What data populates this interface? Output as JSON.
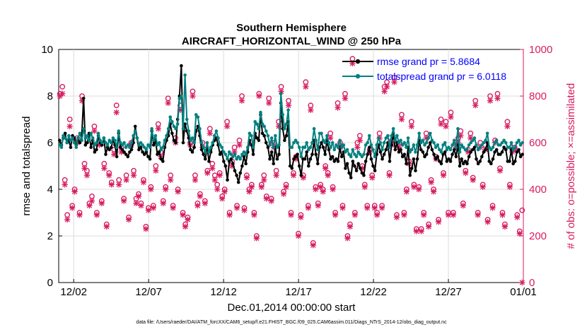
{
  "chart_data": {
    "type": "line",
    "title": "Southern Hemisphere",
    "subtitle": "AIRCRAFT_HORIZONTAL_WIND @ 250 hPa",
    "xlabel": "Dec.01,2014 00:00:00 start",
    "ylabel": "rmse and totalspread",
    "y2label": "# of obs: o=possible; ×=assimilated",
    "xlim": [
      0,
      31
    ],
    "ylim": [
      0,
      10
    ],
    "y2lim": [
      0,
      1000
    ],
    "x_ticks": [
      {
        "x": 1,
        "label": "12/02"
      },
      {
        "x": 6,
        "label": "12/07"
      },
      {
        "x": 11,
        "label": "12/12"
      },
      {
        "x": 16,
        "label": "12/17"
      },
      {
        "x": 21,
        "label": "12/22"
      },
      {
        "x": 26,
        "label": "12/27"
      },
      {
        "x": 31,
        "label": "01/01"
      }
    ],
    "y_ticks": [
      "0",
      "2",
      "4",
      "6",
      "8",
      "10"
    ],
    "y2_ticks": [
      "0",
      "200",
      "400",
      "600",
      "800",
      "1000"
    ],
    "colors": {
      "rmse": "#000000",
      "spread": "#00807f",
      "obs": "#d81b60",
      "axis2": "#d81b60",
      "legend_text": "#0000ff"
    },
    "series": [
      {
        "name": "rmse grand pr = 5.8684",
        "color": "#000000",
        "values": [
          6.1,
          5.9,
          6.2,
          6.4,
          6.0,
          6.1,
          5.8,
          6.3,
          6.2,
          5.9,
          6.1,
          6.0,
          6.3,
          7.9,
          5.9,
          6.0,
          6.4,
          5.8,
          6.1,
          5.6,
          5.7,
          6.3,
          6.0,
          5.9,
          6.2,
          5.5,
          5.8,
          5.7,
          5.8,
          6.1,
          5.9,
          5.4,
          6.4,
          5.8,
          5.7,
          5.6,
          5.5,
          5.4,
          5.6,
          5.7,
          6.0,
          6.7,
          6.2,
          5.7,
          5.8,
          5.6,
          5.5,
          5.6,
          5.4,
          5.3,
          6.5,
          5.9,
          6.1,
          5.5,
          5.6,
          5.3,
          5.2,
          5.8,
          6.1,
          6.3,
          6.8,
          6.4,
          6.1,
          6.0,
          7.0,
          8.0,
          9.3,
          6.0,
          6.8,
          6.5,
          6.2,
          5.7,
          5.6,
          5.8,
          6.5,
          6.7,
          6.3,
          5.7,
          5.5,
          5.3,
          5.8,
          5.2,
          5.6,
          5.9,
          6.1,
          6.2,
          5.9,
          5.5,
          5.6,
          5.2,
          5.0,
          4.4,
          5.2,
          5.3,
          5.1,
          4.8,
          4.6,
          4.3,
          4.7,
          5.0,
          5.4,
          5.1,
          5.6,
          6.1,
          5.9,
          5.5,
          6.4,
          6.2,
          6.1,
          7.2,
          6.4,
          6.3,
          6.0,
          5.8,
          5.3,
          5.6,
          5.1,
          5.8,
          5.3,
          5.5,
          7.7,
          6.6,
          6.1,
          6.3,
          6.9,
          5.0,
          4.9,
          5.3,
          5.4,
          5.5,
          5.0,
          4.6,
          5.3,
          5.3,
          5.6,
          5.0,
          5.3,
          5.5,
          6.1,
          5.5,
          5.1,
          5.8,
          6.0,
          5.8,
          5.5,
          6.1,
          5.7,
          5.3,
          5.4,
          5.2,
          5.3,
          5.2,
          5.8,
          5.4,
          5.6,
          4.9,
          5.1,
          4.7,
          4.5,
          5.2,
          5.0,
          4.8,
          5.1,
          4.9,
          4.7,
          4.6,
          5.2,
          5.5,
          5.8,
          5.3,
          5.0,
          4.8,
          5.5,
          5.9,
          5.6,
          5.3,
          5.5,
          5.7,
          6.0,
          5.2,
          5.9,
          6.4,
          5.7,
          6.0,
          5.6,
          5.7,
          5.4,
          5.5,
          5.1,
          5.8,
          4.6,
          4.9,
          5.3,
          4.8,
          5.3,
          6.1,
          5.7,
          5.6,
          5.4,
          5.5,
          5.8,
          6.0,
          5.7,
          5.5,
          5.3,
          5.4,
          5.2,
          5.1,
          5.5,
          5.6,
          5.2,
          5.3,
          5.2,
          5.5,
          5.7,
          5.4,
          5.9,
          5.0,
          5.3,
          5.1,
          5.2,
          5.1,
          5.4,
          5.6,
          5.7,
          5.8,
          5.3,
          5.1,
          5.2,
          5.4,
          5.6,
          5.7,
          6.0,
          5.2,
          5.1,
          5.3,
          5.6,
          5.7,
          5.5,
          5.5,
          5.6,
          5.8,
          5.7,
          5.2,
          5.2,
          5.7,
          5.1,
          5.2,
          5.6,
          5.7,
          5.4,
          5.5
        ]
      },
      {
        "name": "totalspread grand pr = 6.0118",
        "color": "#00807f",
        "values": [
          5.9,
          5.8,
          6.3,
          6.2,
          6.0,
          6.3,
          6.1,
          6.2,
          6.0,
          5.8,
          6.2,
          6.4,
          6.1,
          6.6,
          6.2,
          6.3,
          6.1,
          6.4,
          6.2,
          5.9,
          6.0,
          6.4,
          6.1,
          6.0,
          6.2,
          6.0,
          5.9,
          6.1,
          6.0,
          6.2,
          6.1,
          5.8,
          6.5,
          6.0,
          5.9,
          6.0,
          5.8,
          5.9,
          5.8,
          6.0,
          6.3,
          6.5,
          6.2,
          5.9,
          6.0,
          5.9,
          5.8,
          5.7,
          5.9,
          5.8,
          6.6,
          6.1,
          6.3,
          5.9,
          6.0,
          5.7,
          5.8,
          6.1,
          6.3,
          6.6,
          7.1,
          6.9,
          6.7,
          6.6,
          6.8,
          7.9,
          8.0,
          6.6,
          8.9,
          7.0,
          6.5,
          6.1,
          6.2,
          6.0,
          7.2,
          7.1,
          6.6,
          6.0,
          5.8,
          5.6,
          6.0,
          5.6,
          5.8,
          6.0,
          6.3,
          6.5,
          6.2,
          5.9,
          5.8,
          5.6,
          5.5,
          5.3,
          5.6,
          5.5,
          5.4,
          5.5,
          5.3,
          5.4,
          5.3,
          5.5,
          5.6,
          5.5,
          5.8,
          6.4,
          6.3,
          5.8,
          6.9,
          6.8,
          6.6,
          7.3,
          6.8,
          6.7,
          6.5,
          6.3,
          5.9,
          6.2,
          5.8,
          6.3,
          5.8,
          5.9,
          8.1,
          7.2,
          6.6,
          6.8,
          7.4,
          5.8,
          5.8,
          6.0,
          6.1,
          6.0,
          5.8,
          5.4,
          5.8,
          5.8,
          6.0,
          5.7,
          5.8,
          6.0,
          6.6,
          6.1,
          5.7,
          6.4,
          6.4,
          6.1,
          6.0,
          6.3,
          6.0,
          5.8,
          6.0,
          5.7,
          5.9,
          5.8,
          6.1,
          5.8,
          5.9,
          5.6,
          5.7,
          5.5,
          5.4,
          5.7,
          5.5,
          5.4,
          5.6,
          5.5,
          5.4,
          5.5,
          5.9,
          6.0,
          6.3,
          5.9,
          5.7,
          5.4,
          5.9,
          6.2,
          6.0,
          5.7,
          6.0,
          6.2,
          6.3,
          5.8,
          6.3,
          6.6,
          6.1,
          6.3,
          6.0,
          6.1,
          5.9,
          6.0,
          5.8,
          6.2,
          5.6,
          5.7,
          5.9,
          5.6,
          5.9,
          6.4,
          6.0,
          6.1,
          5.9,
          6.0,
          6.2,
          6.4,
          6.1,
          6.0,
          5.8,
          5.9,
          5.7,
          5.6,
          5.9,
          6.0,
          5.7,
          5.8,
          5.7,
          5.9,
          6.1,
          5.8,
          6.6,
          5.6,
          5.9,
          5.8,
          5.7,
          5.7,
          5.9,
          6.0,
          6.1,
          6.2,
          5.9,
          5.7,
          5.8,
          5.9,
          6.0,
          6.1,
          6.4,
          5.8,
          5.7,
          5.8,
          6.0,
          6.1,
          5.9,
          5.9,
          6.0,
          6.1,
          6.0,
          5.8,
          5.8,
          6.0,
          5.7,
          5.8,
          6.0,
          6.1,
          5.9,
          6.0
        ]
      },
      {
        "name": "possible",
        "axis": "right",
        "marker": "o",
        "color": "#d81b60",
        "values": [
          810,
          840,
          440,
          290,
          700,
          330,
          400,
          620,
          300,
          800,
          510,
          480,
          340,
          370,
          670,
          300,
          600,
          350,
          510,
          250,
          470,
          430,
          570,
          760,
          440,
          580,
          360,
          460,
          280,
          600,
          480,
          360,
          380,
          340,
          440,
          240,
          320,
          410,
          330,
          500,
          680,
          560,
          350,
          410,
          790,
          460,
          330,
          620,
          400,
          760,
          300,
          250,
          280,
          600,
          820,
          460,
          340,
          380,
          600,
          350,
          480,
          660,
          510,
          460,
          420,
          470,
          370,
          400,
          690,
          300,
          520,
          580,
          330,
          610,
          800,
          320,
          460,
          400,
          420,
          300,
          200,
          810,
          420,
          460,
          370,
          790,
          360,
          600,
          480,
          690,
          840,
          390,
          420,
          780,
          300,
          470,
          540,
          210,
          290,
          460,
          860,
          330,
          760,
          170,
          410,
          340,
          420,
          400,
          500,
          470,
          640,
          410,
          300,
          770,
          600,
          330,
          810,
          200,
          250,
          960,
          300,
          600,
          630,
          500,
          420,
          330,
          570,
          460,
          330,
          300,
          640,
          330,
          840,
          860,
          470,
          610,
          880,
          290,
          600,
          720,
          300,
          400,
          520,
          690,
          420,
          230,
          410,
          230,
          300,
          640,
          250,
          440,
          400,
          540,
          270,
          700,
          470,
          690,
          300,
          730,
          300,
          600,
          620,
          650,
          340,
          480,
          570,
          640,
          450,
          780,
          300,
          600,
          420,
          590,
          270,
          800,
          330,
          610,
          810,
          490,
          300,
          250,
          690,
          420,
          570,
          580,
          290,
          220,
          310
        ]
      },
      {
        "name": "assimilated",
        "axis": "right",
        "marker": "x",
        "color": "#d81b60",
        "values": [
          800,
          810,
          420,
          270,
          670,
          320,
          390,
          600,
          290,
          780,
          490,
          460,
          330,
          350,
          650,
          290,
          590,
          340,
          490,
          240,
          460,
          420,
          550,
          730,
          420,
          560,
          350,
          440,
          270,
          590,
          460,
          340,
          370,
          330,
          430,
          230,
          310,
          400,
          320,
          480,
          660,
          540,
          340,
          400,
          770,
          440,
          320,
          600,
          390,
          740,
          290,
          240,
          270,
          590,
          800,
          440,
          330,
          370,
          580,
          340,
          470,
          640,
          490,
          440,
          400,
          460,
          360,
          390,
          670,
          290,
          500,
          560,
          320,
          590,
          780,
          310,
          450,
          390,
          410,
          290,
          190,
          800,
          410,
          440,
          360,
          770,
          350,
          580,
          460,
          670,
          820,
          380,
          410,
          760,
          290,
          460,
          530,
          200,
          280,
          450,
          840,
          320,
          740,
          160,
          400,
          330,
          410,
          390,
          490,
          460,
          620,
          400,
          290,
          750,
          580,
          320,
          790,
          190,
          240,
          940,
          290,
          580,
          610,
          490,
          410,
          320,
          560,
          450,
          320,
          290,
          620,
          320,
          820,
          840,
          460,
          590,
          860,
          280,
          580,
          700,
          290,
          390,
          510,
          670,
          410,
          220,
          400,
          220,
          290,
          620,
          240,
          430,
          390,
          530,
          260,
          680,
          460,
          670,
          290,
          710,
          290,
          580,
          600,
          630,
          330,
          470,
          560,
          620,
          440,
          760,
          290,
          580,
          410,
          570,
          260,
          780,
          320,
          600,
          790,
          480,
          290,
          240,
          670,
          410,
          560,
          570,
          280,
          210,
          0
        ]
      }
    ]
  },
  "legend": {
    "rmse_label": "rmse grand pr = 5.8684",
    "spread_label": "totalspread grand pr = 6.0118"
  },
  "footer": {
    "text": "data file: /Users/raeder/DAI/ATM_forcXX/CAM6_setup/f.e21.FHIST_BGC.f09_025.CAM6assim.011/Diags_NTrS_2014-12/obs_diag_output.nc"
  }
}
